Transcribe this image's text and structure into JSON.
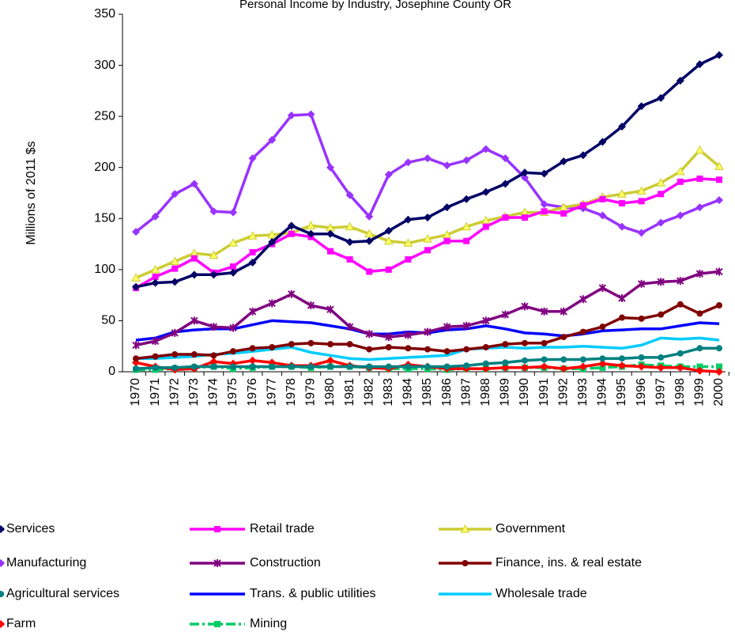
{
  "chart_data": {
    "type": "line",
    "title": "Personal Income by Industry, Josephine County OR",
    "y_label": "Millions of 2011 $s",
    "categories": [
      "1970",
      "1971",
      "1972",
      "1973",
      "1974",
      "1975",
      "1976",
      "1977",
      "1978",
      "1979",
      "1980",
      "1981",
      "1982",
      "1983",
      "1984",
      "1985",
      "1986",
      "1987",
      "1988",
      "1989",
      "1990",
      "1991",
      "1992",
      "1993",
      "1994",
      "1995",
      "1996",
      "1997",
      "1998",
      "1999",
      "2000"
    ],
    "ylim": [
      0,
      350
    ],
    "yticks": [
      0,
      50,
      100,
      150,
      200,
      250,
      300,
      350
    ],
    "grid": false,
    "series": [
      {
        "name": "Services",
        "color": "#000066",
        "marker": "diamond",
        "values": [
          83,
          87,
          88,
          95,
          95,
          97,
          107,
          127,
          143,
          135,
          135,
          127,
          128,
          138,
          149,
          151,
          161,
          169,
          176,
          184,
          195,
          194,
          206,
          212,
          225,
          240,
          260,
          268,
          285,
          301,
          310
        ]
      },
      {
        "name": "Retail trade",
        "color": "#ff00ff",
        "marker": "square",
        "values": [
          82,
          93,
          101,
          111,
          97,
          103,
          117,
          125,
          135,
          132,
          118,
          110,
          98,
          100,
          110,
          119,
          128,
          128,
          142,
          151,
          151,
          157,
          155,
          163,
          169,
          165,
          167,
          174,
          186,
          189,
          188
        ]
      },
      {
        "name": "Government",
        "color": "#cccc33",
        "marker": "triangle",
        "values": [
          92,
          100,
          108,
          116,
          114,
          126,
          133,
          134,
          136,
          143,
          141,
          142,
          135,
          128,
          126,
          130,
          134,
          142,
          148,
          152,
          156,
          156,
          161,
          164,
          171,
          174,
          177,
          185,
          196,
          217,
          201
        ]
      },
      {
        "name": "Manufacturing",
        "color": "#9933ff",
        "marker": "diamond",
        "values": [
          137,
          152,
          174,
          184,
          157,
          156,
          209,
          227,
          251,
          252,
          200,
          173,
          152,
          193,
          205,
          209,
          202,
          207,
          218,
          209,
          190,
          164,
          161,
          160,
          153,
          142,
          136,
          146,
          153,
          161,
          168
        ]
      },
      {
        "name": "Construction",
        "color": "#800080",
        "marker": "star",
        "values": [
          26,
          30,
          38,
          50,
          44,
          43,
          59,
          67,
          76,
          65,
          61,
          44,
          37,
          34,
          36,
          39,
          44,
          45,
          50,
          56,
          64,
          59,
          59,
          71,
          82,
          72,
          86,
          88,
          89,
          96,
          98
        ]
      },
      {
        "name": "Finance, ins. & real estate",
        "color": "#800000",
        "marker": "circle",
        "values": [
          13,
          15,
          17,
          17,
          16,
          20,
          23,
          24,
          27,
          28,
          27,
          27,
          22,
          24,
          23,
          22,
          20,
          22,
          24,
          27,
          28,
          28,
          34,
          39,
          44,
          53,
          52,
          56,
          66,
          57,
          65
        ]
      },
      {
        "name": "Agricultural services",
        "color": "#008080",
        "marker": "circle",
        "values": [
          3,
          4,
          4,
          5,
          5,
          5,
          5,
          5,
          5,
          5,
          5,
          5,
          5,
          5,
          5,
          5,
          5,
          6,
          8,
          9,
          11,
          12,
          12,
          12,
          13,
          13,
          14,
          14,
          18,
          23,
          23
        ]
      },
      {
        "name": "Trans. & public utilities",
        "color": "#0000ff",
        "marker": "none",
        "values": [
          31,
          33,
          39,
          41,
          42,
          42,
          46,
          50,
          49,
          48,
          45,
          42,
          37,
          37,
          39,
          38,
          41,
          42,
          45,
          42,
          38,
          37,
          35,
          37,
          40,
          41,
          42,
          42,
          45,
          48,
          47
        ]
      },
      {
        "name": "Wholesale trade",
        "color": "#00ccff",
        "marker": "none",
        "values": [
          13,
          13,
          14,
          15,
          17,
          18,
          20,
          22,
          24,
          19,
          16,
          13,
          12,
          13,
          14,
          15,
          16,
          22,
          23,
          24,
          23,
          24,
          24,
          25,
          24,
          23,
          26,
          33,
          32,
          33,
          31
        ]
      },
      {
        "name": "Farm",
        "color": "#ff0000",
        "marker": "diamond",
        "values": [
          9,
          5,
          2,
          3,
          10,
          8,
          11,
          9,
          6,
          6,
          11,
          6,
          4,
          3,
          7,
          5,
          3,
          3,
          3,
          4,
          4,
          5,
          3,
          5,
          8,
          6,
          5,
          4,
          4,
          1,
          0
        ]
      },
      {
        "name": "Mining",
        "color": "#00cc66",
        "marker": "square",
        "dashed": true,
        "values": [
          2,
          2,
          3,
          4,
          5,
          3,
          4,
          5,
          5,
          4,
          5,
          5,
          4,
          3,
          3,
          3,
          2,
          3,
          3,
          4,
          4,
          4,
          3,
          3,
          4,
          5,
          7,
          6,
          5,
          5,
          5
        ]
      }
    ]
  }
}
